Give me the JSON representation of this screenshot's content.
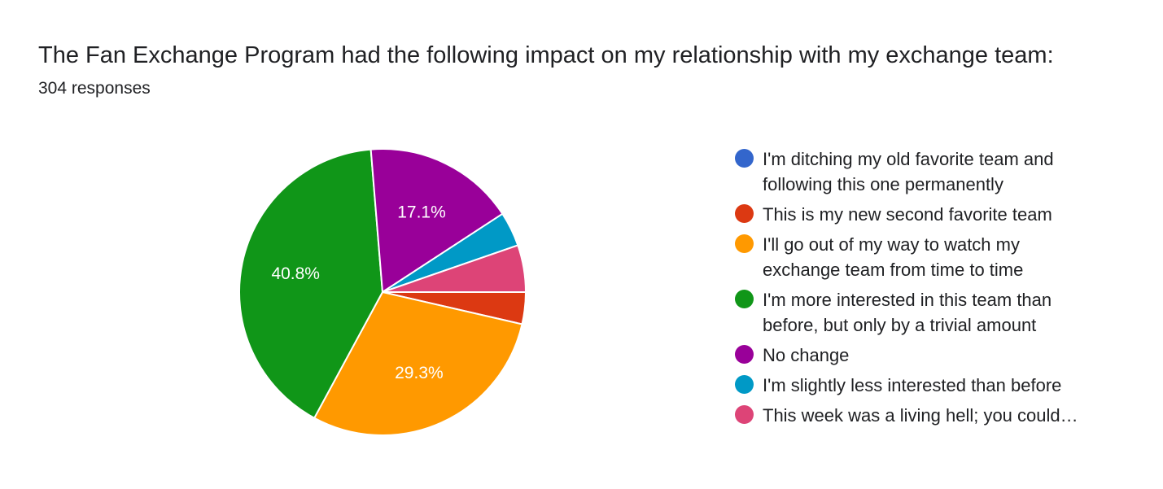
{
  "header": {
    "title": "The Fan Exchange Program had the following impact on my relationship with my exchange team:",
    "subtitle": "304 responses"
  },
  "chart_data": {
    "type": "pie",
    "title": "The Fan Exchange Program had the following impact on my relationship with my exchange team:",
    "categories": [
      "I'm ditching my old favorite team and following this one permanently",
      "This is my new second favorite team",
      "I'll go out of my way to watch my exchange team from time to time",
      "I'm more interested in this team than before, but only by a trivial amount",
      "No change",
      "I'm slightly less interested than before",
      "This week was a living hell; you could…"
    ],
    "values": [
      0.0,
      3.6,
      29.3,
      40.8,
      17.1,
      3.9,
      5.3
    ],
    "data_labels": [
      "",
      "",
      "29.3%",
      "40.8%",
      "17.1%",
      "",
      ""
    ],
    "colors": [
      "#3366cc",
      "#dc3912",
      "#ff9900",
      "#109618",
      "#990099",
      "#0099c6",
      "#dd4477"
    ],
    "legend_position": "right",
    "total_responses": 304
  },
  "legend": {
    "items": [
      {
        "label": "I'm ditching my old favorite team and\nfollowing this one permanently",
        "color": "#3366cc"
      },
      {
        "label": "This is my new second favorite team",
        "color": "#dc3912"
      },
      {
        "label": "I'll go out of my way to watch my\nexchange team from time to time",
        "color": "#ff9900"
      },
      {
        "label": "I'm more interested in this team than\nbefore, but only by a trivial amount",
        "color": "#109618"
      },
      {
        "label": "No change",
        "color": "#990099"
      },
      {
        "label": "I'm slightly less interested than before",
        "color": "#0099c6"
      },
      {
        "label": "This week was a living hell; you could…",
        "color": "#dd4477"
      }
    ]
  }
}
